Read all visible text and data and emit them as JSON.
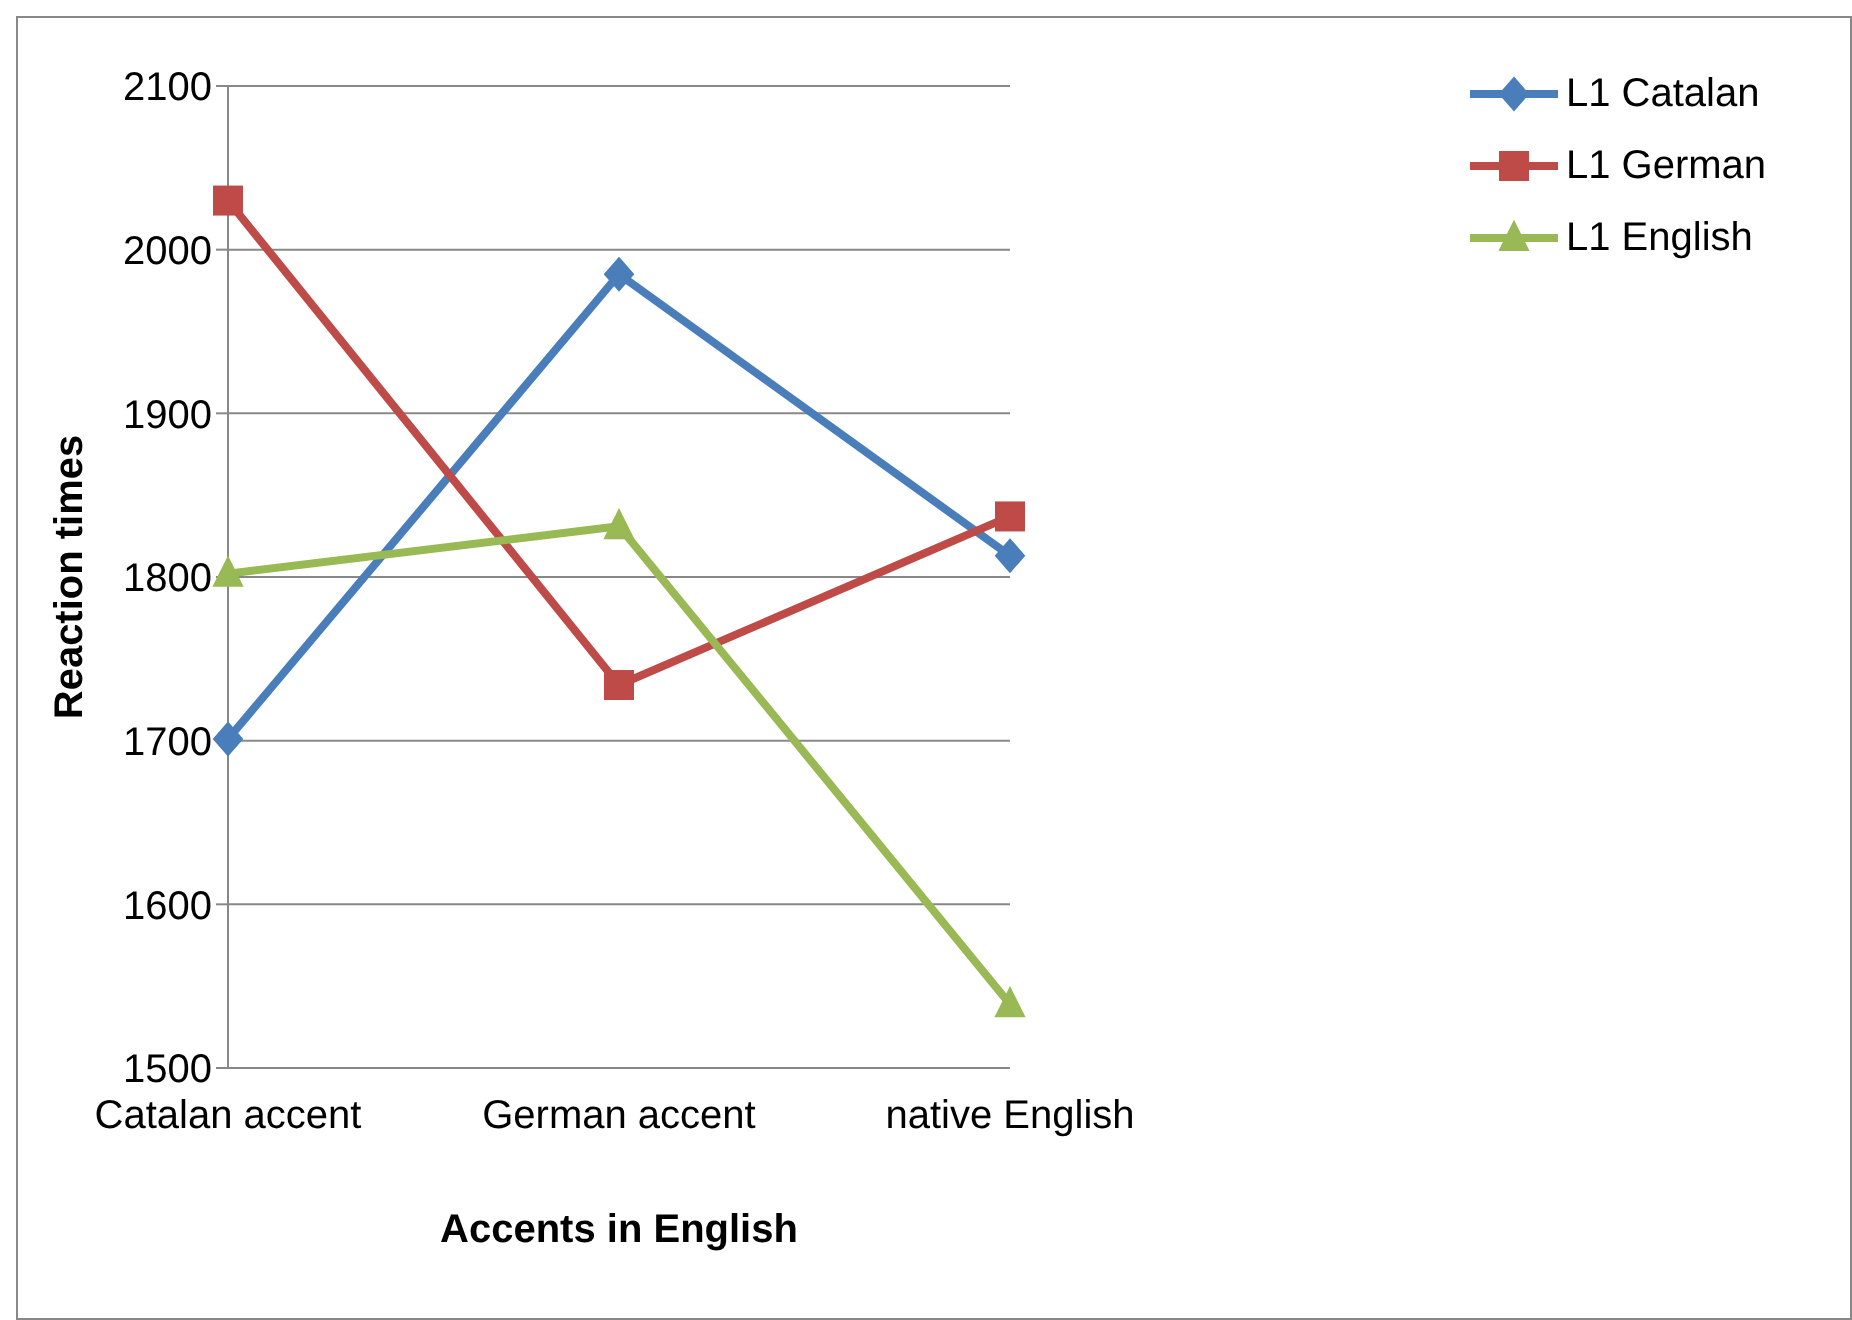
{
  "chart_data": {
    "type": "line",
    "xlabel": "Accents in English",
    "ylabel": "Reaction times",
    "categories": [
      "Catalan accent",
      "German accent",
      "native English"
    ],
    "series": [
      {
        "name": "L1 Catalan",
        "color": "#4a7ebb",
        "marker": "diamond",
        "values": [
          1701,
          1985,
          1813
        ]
      },
      {
        "name": "L1 German",
        "color": "#be4b48",
        "marker": "square",
        "values": [
          2030,
          1734,
          1837
        ]
      },
      {
        "name": "L1 English",
        "color": "#98b954",
        "marker": "triangle",
        "values": [
          1802,
          1831,
          1539
        ]
      }
    ],
    "ylim": [
      1500,
      2100
    ],
    "yticks": [
      1500,
      1600,
      1700,
      1800,
      1900,
      2000,
      2100
    ],
    "grid": "y",
    "legend": "top right"
  }
}
